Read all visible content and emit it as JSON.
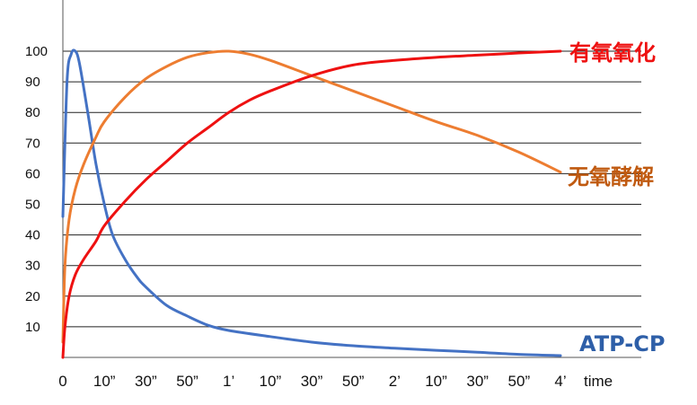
{
  "chart_data": {
    "type": "line",
    "xlabel": "time",
    "x_ticks": [
      "0",
      "10”",
      "30”",
      "50”",
      "1’",
      "10”",
      "30”",
      "50”",
      "2’",
      "10”",
      "30”",
      "50”",
      "4’"
    ],
    "y_ticks": [
      10,
      20,
      30,
      40,
      50,
      60,
      70,
      80,
      90,
      100
    ],
    "ylim": [
      0,
      100
    ],
    "xlim": [
      0,
      12
    ],
    "grid": "horizontal",
    "series": [
      {
        "name": "ATP-CP",
        "color": "#4472c4",
        "points": [
          [
            0,
            46
          ],
          [
            0.1,
            90
          ],
          [
            0.2,
            99
          ],
          [
            0.3,
            100
          ],
          [
            0.4,
            96
          ],
          [
            0.6,
            80
          ],
          [
            0.8,
            63
          ],
          [
            1,
            50
          ],
          [
            1.2,
            40
          ],
          [
            1.5,
            32
          ],
          [
            1.8,
            26
          ],
          [
            2,
            23
          ],
          [
            2.5,
            17
          ],
          [
            3,
            13.5
          ],
          [
            3.5,
            10.5
          ],
          [
            4,
            8.8
          ],
          [
            5,
            6.8
          ],
          [
            6,
            5
          ],
          [
            7,
            3.8
          ],
          [
            8,
            3
          ],
          [
            9,
            2.3
          ],
          [
            10,
            1.7
          ],
          [
            11,
            1
          ],
          [
            12,
            0.6
          ]
        ]
      },
      {
        "name": "无氧酵解",
        "color": "#ed7d31",
        "points": [
          [
            0,
            5
          ],
          [
            0.05,
            30
          ],
          [
            0.15,
            45
          ],
          [
            0.3,
            55
          ],
          [
            0.5,
            63
          ],
          [
            0.8,
            72
          ],
          [
            1,
            77
          ],
          [
            1.5,
            85
          ],
          [
            2,
            91
          ],
          [
            2.5,
            95
          ],
          [
            3,
            98
          ],
          [
            3.5,
            99.5
          ],
          [
            4,
            100
          ],
          [
            4.5,
            99
          ],
          [
            5,
            97
          ],
          [
            6,
            92
          ],
          [
            7,
            87
          ],
          [
            8,
            82
          ],
          [
            9,
            77
          ],
          [
            10,
            72.5
          ],
          [
            11,
            67
          ],
          [
            12,
            60.5
          ]
        ]
      },
      {
        "name": "有氧氧化",
        "color": "#ee1111",
        "points": [
          [
            0,
            0
          ],
          [
            0.05,
            10
          ],
          [
            0.15,
            20
          ],
          [
            0.3,
            27
          ],
          [
            0.5,
            32
          ],
          [
            0.8,
            38
          ],
          [
            1,
            43
          ],
          [
            1.5,
            51
          ],
          [
            2,
            58
          ],
          [
            2.5,
            64
          ],
          [
            3,
            70
          ],
          [
            3.5,
            75
          ],
          [
            4,
            80
          ],
          [
            4.5,
            84
          ],
          [
            5,
            87
          ],
          [
            6,
            92
          ],
          [
            7,
            95.5
          ],
          [
            8,
            97
          ],
          [
            9,
            98
          ],
          [
            10,
            98.7
          ],
          [
            11,
            99.4
          ],
          [
            12,
            100
          ]
        ]
      }
    ]
  }
}
